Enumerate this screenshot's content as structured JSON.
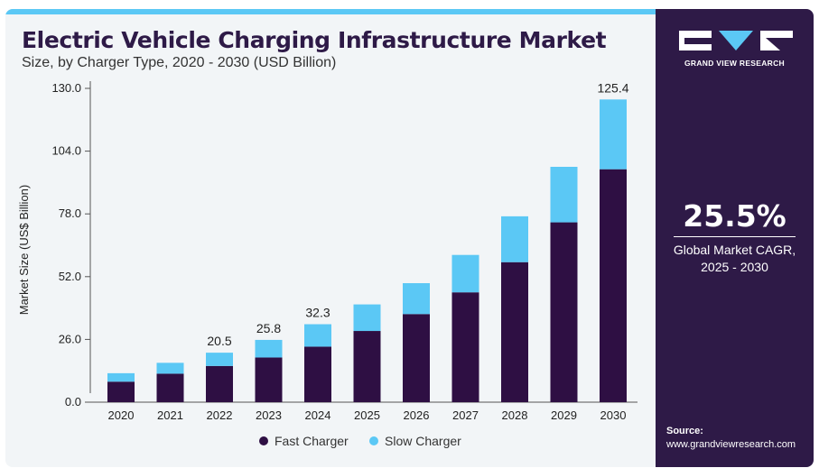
{
  "header": {
    "title": "Electric Vehicle Charging Infrastructure Market",
    "subtitle": "Size, by Charger Type, 2020 - 2030 (USD Billion)"
  },
  "brand": {
    "name": "GRAND VIEW RESEARCH",
    "logo_icon": "gvr-logo-icon"
  },
  "stat": {
    "cagr_value": "25.5%",
    "cagr_label_line1": "Global Market CAGR,",
    "cagr_label_line2": "2025 - 2030"
  },
  "source": {
    "label": "Source:",
    "url": "www.grandviewresearch.com"
  },
  "colors": {
    "accent": "#5bc8f5",
    "brand_dark": "#2e1a47",
    "fast": "#2e0f43",
    "slow": "#5bc8f5"
  },
  "chart_data": {
    "type": "bar",
    "stacked": true,
    "title": "Electric Vehicle Charging Infrastructure Market",
    "subtitle": "Size, by Charger Type, 2020 - 2030 (USD Billion)",
    "xlabel": "",
    "ylabel": "Market Size (US$ Billion)",
    "categories": [
      "2020",
      "2021",
      "2022",
      "2023",
      "2024",
      "2025",
      "2026",
      "2027",
      "2028",
      "2029",
      "2030"
    ],
    "series": [
      {
        "name": "Fast Charger",
        "color": "#2e0f43",
        "values": [
          8.5,
          11.8,
          15.0,
          18.5,
          23.0,
          29.5,
          36.5,
          45.5,
          58.0,
          74.5,
          96.5
        ]
      },
      {
        "name": "Slow Charger",
        "color": "#5bc8f5",
        "values": [
          3.5,
          4.5,
          5.5,
          7.3,
          9.3,
          11.0,
          12.8,
          15.5,
          19.0,
          23.0,
          28.9
        ]
      }
    ],
    "data_labels": [
      {
        "category": "2022",
        "text": "20.5"
      },
      {
        "category": "2023",
        "text": "25.8"
      },
      {
        "category": "2024",
        "text": "32.3"
      },
      {
        "category": "2030",
        "text": "125.4"
      }
    ],
    "y_ticks": [
      "0.0",
      "26.0",
      "52.0",
      "78.0",
      "104.0",
      "130.0"
    ],
    "ylim": [
      0,
      130
    ],
    "grid": false,
    "legend_position": "bottom-center"
  }
}
